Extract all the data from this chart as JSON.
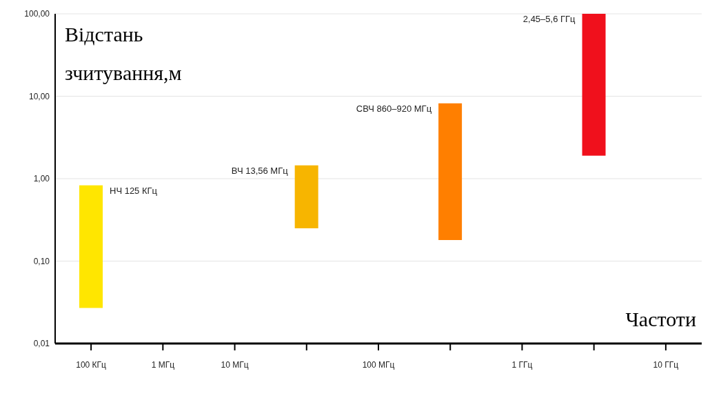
{
  "chart_data": {
    "type": "bar",
    "xlabel": "Частоти",
    "ylabel": "Відстань зчитування,м",
    "categories": [
      "100 КГц",
      "1 МГц",
      "10 МГц",
      null,
      "100 МГц",
      null,
      "1 ГГц",
      null,
      "10 ГГц"
    ],
    "base": [
      0.027,
      null,
      null,
      0.25,
      null,
      0.18,
      null,
      1.9,
      null
    ],
    "values": [
      0.803,
      null,
      null,
      1.2,
      null,
      8.02,
      null,
      98.1,
      null
    ],
    "colors": [
      "#ffe600",
      null,
      null,
      "#f7b500",
      null,
      "#ff7f00",
      null,
      "#f0101c",
      null
    ],
    "log": true,
    "ylim": [
      0.01,
      100
    ],
    "yticks": [
      {
        "value": 0.01,
        "label": "0,01"
      },
      {
        "value": 0.1,
        "label": "0,10"
      },
      {
        "value": 1,
        "label": "1,00"
      },
      {
        "value": 10,
        "label": "10,00"
      },
      {
        "value": 100,
        "label": "100,00"
      }
    ],
    "grid": "y",
    "annotations": [
      "НЧ 125 КГц",
      "ВЧ 13,56 МГц",
      "СВЧ 860–920 МГц",
      "2,45–5,6 ГГц"
    ]
  }
}
